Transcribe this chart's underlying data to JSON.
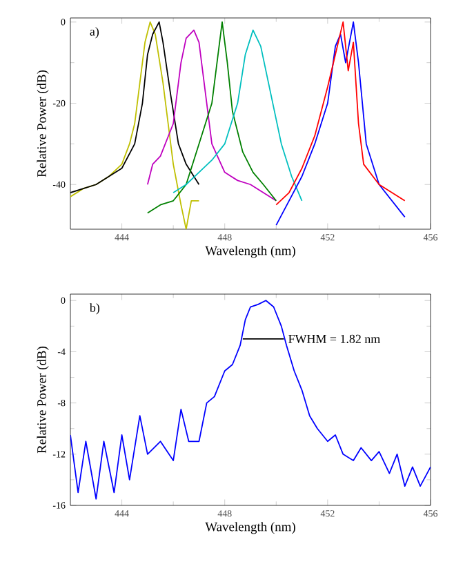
{
  "chart_data": [
    {
      "type": "line",
      "xlabel": "Wavelength (nm)",
      "ylabel": "Relative Power (dB)",
      "xlim": [
        442,
        456
      ],
      "ylim": [
        -51,
        1
      ],
      "xticks": [
        444,
        448,
        452,
        456
      ],
      "yticks": [
        -40,
        -20,
        0
      ],
      "annotations": [
        "a)"
      ],
      "series": [
        {
          "color": "#bfbf00",
          "x": [
            442,
            442.5,
            443,
            443.5,
            444,
            444.3,
            444.5,
            444.7,
            444.9,
            445.1,
            445.3,
            445.6,
            445.8,
            446,
            446.3,
            446.5,
            446.7,
            447
          ],
          "values": [
            -43,
            -41,
            -40,
            -38,
            -35,
            -30,
            -25,
            -15,
            -5,
            0,
            -3,
            -15,
            -25,
            -35,
            -45,
            -51,
            -44,
            -44
          ]
        },
        {
          "color": "#000000",
          "x": [
            442,
            442.5,
            443,
            443.5,
            444,
            444.5,
            444.8,
            445,
            445.2,
            445.45,
            445.6,
            445.9,
            446.2,
            446.5,
            446.8,
            447
          ],
          "values": [
            -42,
            -41,
            -40,
            -38,
            -36,
            -30,
            -20,
            -8,
            -3,
            0,
            -5,
            -18,
            -30,
            -35,
            -38,
            -40
          ]
        },
        {
          "color": "#bf00bf",
          "x": [
            445,
            445.2,
            445.5,
            446,
            446.3,
            446.5,
            446.8,
            447,
            447.3,
            447.5,
            448,
            448.5,
            449,
            449.5,
            450
          ],
          "values": [
            -40,
            -35,
            -33,
            -25,
            -10,
            -4,
            -2,
            -5,
            -20,
            -30,
            -37,
            -39,
            -40,
            -42,
            -44
          ]
        },
        {
          "color": "#008000",
          "x": [
            445,
            445.5,
            446,
            446.5,
            447,
            447.5,
            447.7,
            447.9,
            448.1,
            448.3,
            448.7,
            449.1,
            449.5,
            450
          ],
          "values": [
            -47,
            -45,
            -44,
            -40,
            -30,
            -20,
            -10,
            0,
            -10,
            -22,
            -32,
            -37,
            -40,
            -44
          ]
        },
        {
          "color": "#00bfbf",
          "x": [
            446,
            446.5,
            447,
            447.5,
            448,
            448.5,
            448.8,
            449.1,
            449.4,
            449.8,
            450.2,
            450.6,
            451
          ],
          "values": [
            -42,
            -40,
            -37,
            -34,
            -30,
            -20,
            -8,
            -2,
            -6,
            -18,
            -30,
            -38,
            -44
          ]
        },
        {
          "color": "#0000ff",
          "x": [
            450,
            450.5,
            451,
            451.5,
            452,
            452.3,
            452.5,
            452.7,
            453,
            453.2,
            453.5,
            454,
            454.5,
            455
          ],
          "values": [
            -50,
            -44,
            -38,
            -30,
            -20,
            -6,
            -3,
            -10,
            0,
            -10,
            -30,
            -40,
            -44,
            -48
          ]
        },
        {
          "color": "#ff0000",
          "x": [
            450,
            450.5,
            451,
            451.5,
            452,
            452.3,
            452.6,
            452.8,
            453,
            453.2,
            453.4,
            454,
            454.5,
            455
          ],
          "values": [
            -45,
            -42,
            -36,
            -28,
            -16,
            -8,
            0,
            -12,
            -5,
            -25,
            -35,
            -40,
            -42,
            -44
          ]
        }
      ]
    },
    {
      "type": "line",
      "xlabel": "Wavelength (nm)",
      "ylabel": "Relative Power (dB)",
      "xlim": [
        442,
        456
      ],
      "ylim": [
        -16,
        0.5
      ],
      "xticks": [
        444,
        448,
        452,
        456
      ],
      "yticks": [
        -16,
        -12,
        -8,
        -4,
        0
      ],
      "annotations": [
        "b)",
        {
          "text": "FWHM = 1.82 nm",
          "x": 450.4,
          "y": -3
        }
      ],
      "series": [
        {
          "color": "#0000ff",
          "x": [
            442,
            442.3,
            442.6,
            443,
            443.3,
            443.7,
            444,
            444.3,
            444.7,
            445,
            445.5,
            446,
            446.3,
            446.6,
            447,
            447.3,
            447.6,
            448,
            448.3,
            448.6,
            448.8,
            449,
            449.3,
            449.6,
            449.9,
            450.2,
            450.4,
            450.7,
            451,
            451.3,
            451.6,
            452,
            452.3,
            452.6,
            453,
            453.3,
            453.7,
            454,
            454.4,
            454.7,
            455,
            455.3,
            455.6,
            456
          ],
          "values": [
            -10.5,
            -15,
            -11,
            -15.5,
            -11,
            -15,
            -10.5,
            -14,
            -9,
            -12,
            -11,
            -12.5,
            -8.5,
            -11,
            -11,
            -8,
            -7.5,
            -5.5,
            -5,
            -3.5,
            -1.5,
            -0.5,
            -0.3,
            0,
            -0.5,
            -2,
            -3.5,
            -5.5,
            -7,
            -9,
            -10,
            -11,
            -10.5,
            -12,
            -12.5,
            -11.5,
            -12.5,
            -11.8,
            -13.5,
            -12,
            -14.5,
            -13,
            -14.5,
            -13
          ]
        },
        {
          "type": "line",
          "color": "#000000",
          "x": [
            448.7,
            450.3
          ],
          "values": [
            -3,
            -3
          ]
        }
      ]
    }
  ]
}
